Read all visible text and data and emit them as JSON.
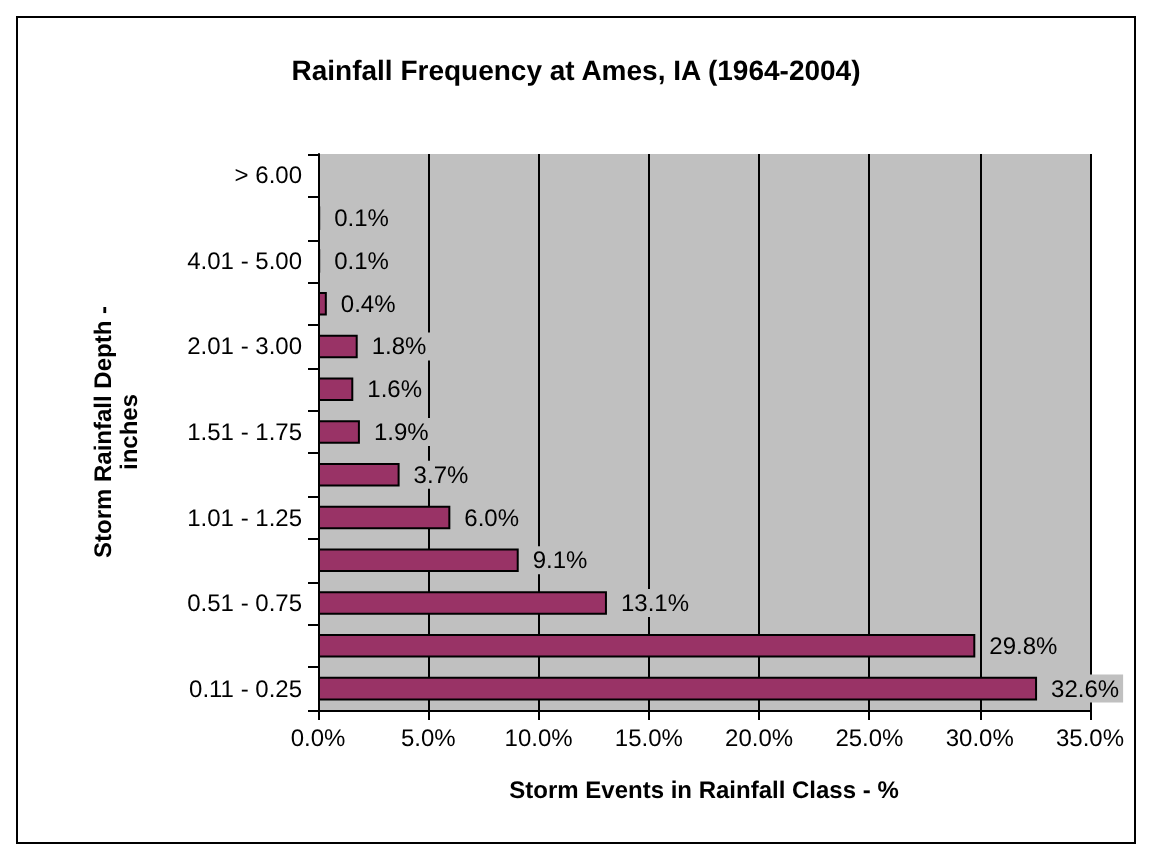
{
  "chart_data": {
    "type": "bar",
    "orientation": "horizontal",
    "title": "Rainfall Frequency at Ames, IA (1964-2004)",
    "xlabel": "Storm Events in Rainfall Class - %",
    "ylabel": "Storm Rainfall Depth -\ninches",
    "categories": [
      "> 6.00",
      null,
      "4.01 - 5.00",
      null,
      "2.01 - 3.00",
      null,
      "1.51 - 1.75",
      null,
      "1.01 - 1.25",
      null,
      "0.51 - 0.75",
      null,
      "0.11 - 0.25"
    ],
    "values": [
      null,
      0.1,
      0.1,
      0.4,
      1.8,
      1.6,
      1.9,
      3.7,
      6.0,
      9.1,
      13.1,
      29.8,
      32.6
    ],
    "value_labels": [
      null,
      "0.1%",
      "0.1%",
      "0.4%",
      "1.8%",
      "1.6%",
      "1.9%",
      "3.7%",
      "6.0%",
      "9.1%",
      "13.1%",
      "29.8%",
      "32.6%"
    ],
    "color": "#993366",
    "xlim": [
      0,
      35
    ],
    "xticks": [
      {
        "value": 0,
        "label": "0.0%"
      },
      {
        "value": 5,
        "label": "5.0%"
      },
      {
        "value": 10,
        "label": "10.0%"
      },
      {
        "value": 15,
        "label": "15.0%"
      },
      {
        "value": 20,
        "label": "20.0%"
      },
      {
        "value": 25,
        "label": "25.0%"
      },
      {
        "value": 30,
        "label": "30.0%"
      },
      {
        "value": 35,
        "label": "35.0%"
      }
    ],
    "grid": "x"
  }
}
